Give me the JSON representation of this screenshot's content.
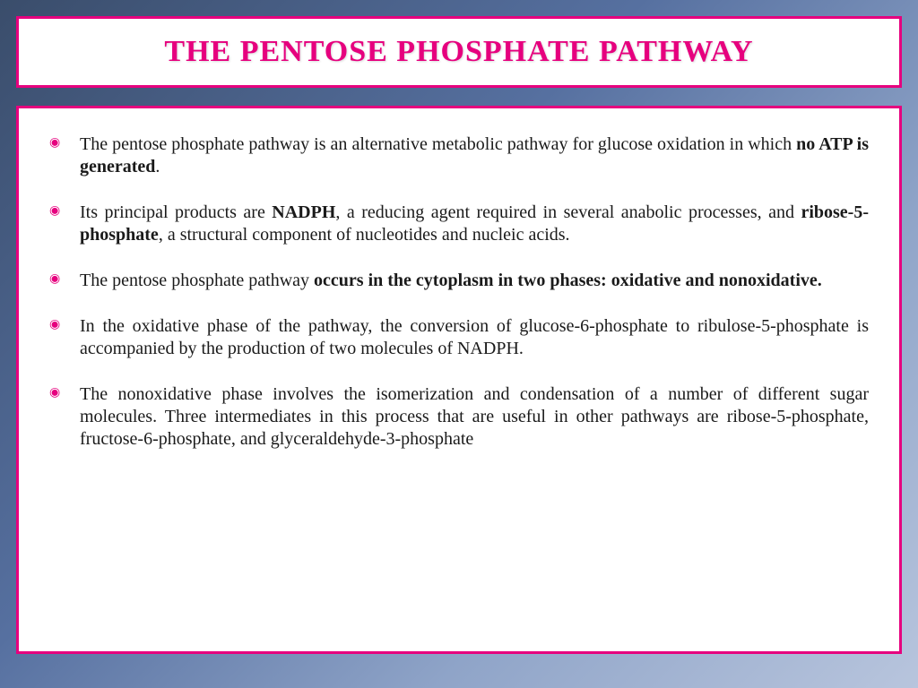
{
  "slide": {
    "title": "THE PENTOSE PHOSPHATE PATHWAY",
    "title_color": "#e6007e",
    "border_color": "#e6007e",
    "background_gradient_from": "#3a4d6b",
    "background_gradient_to": "#b8c5dd",
    "bullet_marker_color": "#e6007e",
    "text_color": "#1a1a1a",
    "title_fontsize": 34,
    "body_fontsize": 20,
    "bullets": [
      {
        "pre": " The pentose phosphate pathway is an alternative metabolic pathway for glucose oxidation in which ",
        "bold1": "no ATP is generated",
        "mid": ".",
        "bold2": "",
        "post": ""
      },
      {
        "pre": " Its principal products are ",
        "bold1": "NADPH",
        "mid": ", a reducing agent required in several anabolic processes, and ",
        "bold2": "ribose-5-phosphate",
        "post": ", a structural component of nucleotides and nucleic acids."
      },
      {
        "pre": "The pentose phosphate pathway ",
        "bold1": "occurs in the cytoplasm in two phases: oxidative and nonoxidative.",
        "mid": "",
        "bold2": "",
        "post": ""
      },
      {
        "pre": " In the oxidative phase of the pathway, the conversion of glucose-6-phosphate to ribulose-5-phosphate is accompanied by the production of two molecules of NADPH.",
        "bold1": "",
        "mid": "",
        "bold2": "",
        "post": ""
      },
      {
        "pre": "The nonoxidative phase involves the isomerization and condensation of a number of different sugar molecules. Three intermediates in this process that are useful in other pathways are ribose-5-phosphate, fructose-6-phosphate, and glyceraldehyde-3-phosphate",
        "bold1": "",
        "mid": "",
        "bold2": "",
        "post": ""
      }
    ]
  }
}
